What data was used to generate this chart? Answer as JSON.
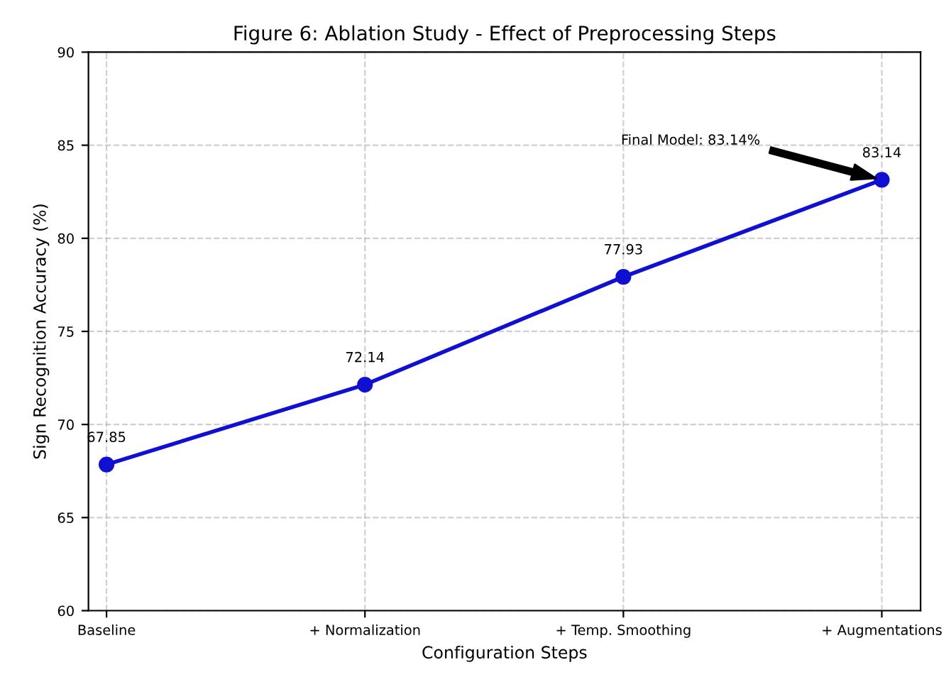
{
  "chart_data": {
    "type": "line",
    "title": "Figure 6: Ablation Study - Effect of Preprocessing Steps",
    "xlabel": "Configuration Steps",
    "ylabel": "Sign Recognition Accuracy (%)",
    "categories": [
      "Baseline",
      "+ Normalization",
      "+ Temp. Smoothing",
      "+ Augmentations"
    ],
    "series": [
      {
        "color": "#1010d0",
        "values": [
          67.85,
          72.14,
          77.93,
          83.14
        ]
      }
    ],
    "ylim": [
      60,
      90
    ],
    "yticks": [
      60,
      65,
      70,
      75,
      80,
      85,
      90
    ],
    "data_labels": true,
    "grid": true,
    "marker": "circle",
    "line_style": "solid",
    "legend": false,
    "annotations": [
      "Final Model: 83.14%"
    ]
  }
}
